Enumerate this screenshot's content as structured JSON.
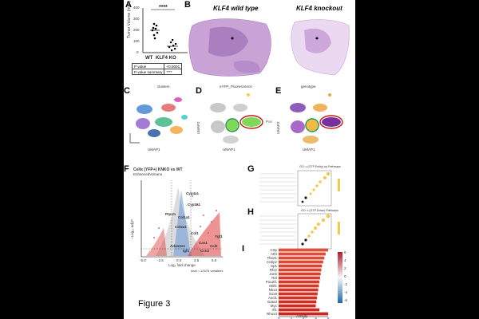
{
  "figure_label": "Figure 3",
  "panels": {
    "A": {
      "letter": "A",
      "ylabel": "Tumor Volume (mm³)",
      "yticks": [
        "400",
        "300",
        "200",
        "100",
        "0"
      ],
      "significance": "****",
      "groups": [
        "WT",
        "KLF4 KO"
      ],
      "table": [
        {
          "label": "P value",
          "value": "<0.0001"
        },
        {
          "label": "P value summary",
          "value": "****"
        }
      ]
    },
    "B": {
      "letter": "B",
      "left_title": "KLF4 wild type",
      "right_title": "KLF4 knockout"
    },
    "C": {
      "letter": "C",
      "title": "clusters",
      "xlabel": "UMAP1",
      "ylabel": "UMAP2"
    },
    "D": {
      "letter": "D",
      "title": "eYFP_Fluorescence",
      "xlabel": "UMAP1",
      "ylabel": "UMAP2",
      "legend": "Pos"
    },
    "E": {
      "letter": "E",
      "title": "genotype",
      "xlabel": "UMAP1",
      "ylabel": "UMAP2"
    },
    "F": {
      "letter": "F",
      "title": "Cells (YFP+) KNKO vs WT",
      "subtitle": "EnhancedVolcano",
      "xlabel": "Log₂ fold change",
      "ylabel": "−Log₁₀ adj P",
      "genes": [
        "Cyp4a1",
        "Cyp2a1",
        "Ptprm",
        "Col1a1",
        "Col4a1",
        "Adamts1",
        "Igf1",
        "Col1",
        "Cav1",
        "Ccn2",
        "Ccl2",
        "Ygf1"
      ],
      "footer": "total = 12076 variables",
      "xticks": [
        "-5.0",
        "-2.5",
        "0.0",
        "2.5",
        "5.0"
      ]
    },
    "G": {
      "letter": "G",
      "title": "GO: c (GTP Entity) up Pathways"
    },
    "H": {
      "letter": "H",
      "title": "GO: c (GTP Down) Pathways"
    },
    "I": {
      "letter": "I",
      "xlabel": "Activity",
      "genes": [
        "Crtp",
        "Atf4",
        "Tbx21",
        "Cebpz",
        "Sp1",
        "Rfx2",
        "Junb",
        "Rel",
        "Pou2f1",
        "Mitf1",
        "Nkx3",
        "Sox9",
        "Ascl1",
        "Gata3",
        "Myc",
        "Irf1",
        "Rhox4"
      ],
      "values": [
        8,
        7.6,
        7.4,
        7.2,
        7.0,
        6.9,
        6.8,
        6.7,
        6.6,
        6.5,
        6.4,
        6.3,
        6.2,
        6.1,
        6.0,
        6.6,
        8.0
      ],
      "xticks": [
        "0",
        "2",
        "4",
        "6",
        "8"
      ],
      "cbar_ticks": [
        "6",
        "4",
        "2",
        "0",
        "-2",
        "-4",
        "-6"
      ]
    }
  }
}
